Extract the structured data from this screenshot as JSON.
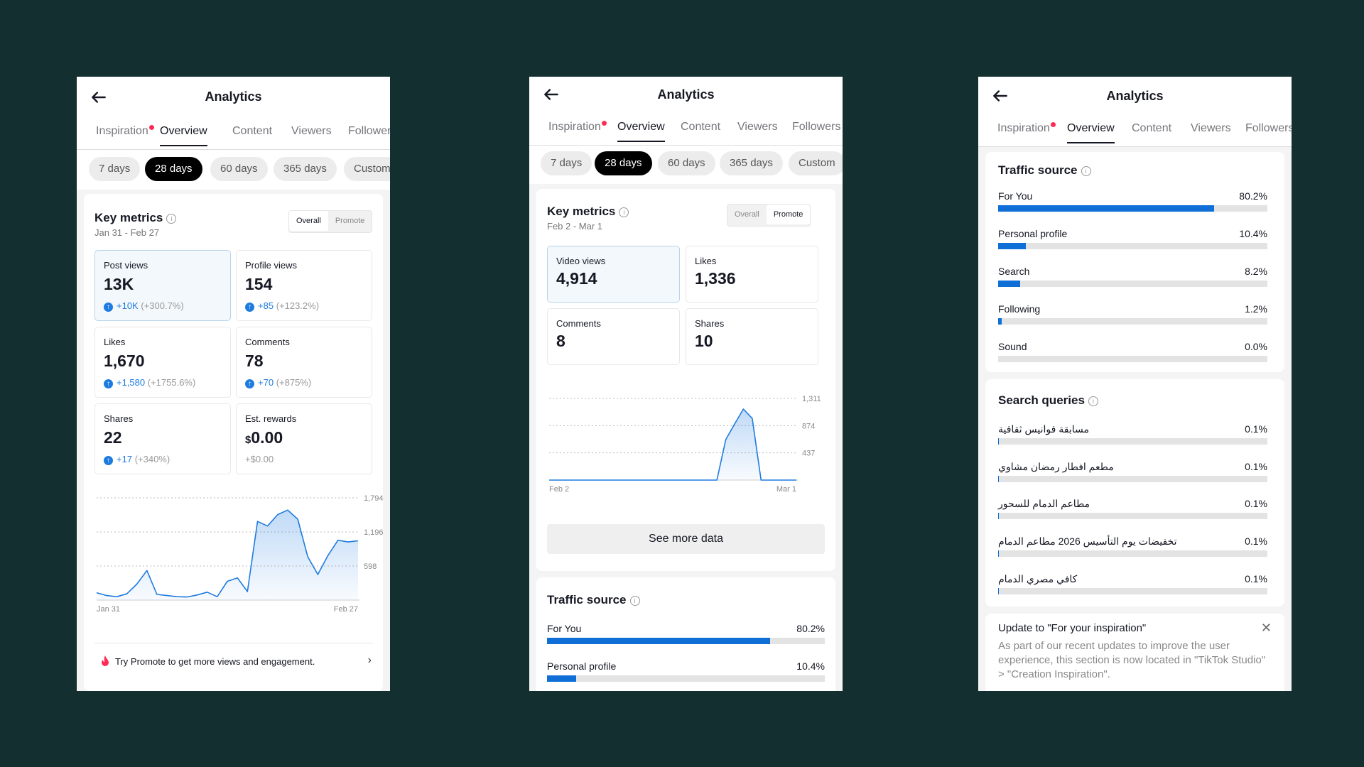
{
  "colors": {
    "background": "#132f30",
    "accent": "#1e7be0",
    "bar": "#0f6fd7",
    "notif_dot": "#fe2c55"
  },
  "header": {
    "title": "Analytics",
    "back_icon": "arrow-left-icon"
  },
  "tabs": [
    "Inspiration",
    "Overview",
    "Content",
    "Viewers",
    "Followers"
  ],
  "active_tab": "Overview",
  "date_ranges": [
    "7 days",
    "28 days",
    "60 days",
    "365 days",
    "Custom"
  ],
  "active_range": "28 days",
  "screen1": {
    "key_metrics_title": "Key metrics",
    "date_range": "Jan 31 - Feb 27",
    "toggle": [
      "Overall",
      "Promote"
    ],
    "toggle_active": "Overall",
    "metrics": [
      {
        "label": "Post views",
        "value": "13K",
        "change": "+10K",
        "pct": "(+300.7%)"
      },
      {
        "label": "Profile views",
        "value": "154",
        "change": "+85",
        "pct": "(+123.2%)"
      },
      {
        "label": "Likes",
        "value": "1,670",
        "change": "+1,580",
        "pct": "(+1755.6%)"
      },
      {
        "label": "Comments",
        "value": "78",
        "change": "+70",
        "pct": "(+875%)"
      },
      {
        "label": "Shares",
        "value": "22",
        "change": "+17",
        "pct": "(+340%)"
      },
      {
        "label": "Est. rewards",
        "currency": "$",
        "value": "0.00",
        "change_plain": "+$0.00"
      }
    ],
    "promo_text": "Try Promote to get more views and engagement."
  },
  "screen2": {
    "key_metrics_title": "Key metrics",
    "date_range": "Feb 2 - Mar 1",
    "toggle": [
      "Overall",
      "Promote"
    ],
    "toggle_active": "Promote",
    "metrics": [
      {
        "label": "Video views",
        "value": "4,914"
      },
      {
        "label": "Likes",
        "value": "1,336"
      },
      {
        "label": "Comments",
        "value": "8"
      },
      {
        "label": "Shares",
        "value": "10"
      }
    ],
    "see_more": "See more data",
    "traffic_title": "Traffic source",
    "traffic": [
      {
        "name": "For You",
        "pct": "80.2%",
        "value": 80.2
      },
      {
        "name": "Personal profile",
        "pct": "10.4%",
        "value": 10.4
      }
    ]
  },
  "screen3": {
    "traffic_title": "Traffic source",
    "traffic": [
      {
        "name": "For You",
        "pct": "80.2%",
        "value": 80.2
      },
      {
        "name": "Personal profile",
        "pct": "10.4%",
        "value": 10.4
      },
      {
        "name": "Search",
        "pct": "8.2%",
        "value": 8.2
      },
      {
        "name": "Following",
        "pct": "1.2%",
        "value": 1.2
      },
      {
        "name": "Sound",
        "pct": "0.0%",
        "value": 0
      }
    ],
    "search_title": "Search queries",
    "queries": [
      {
        "name": "مسابقة فوانيس ثقافية",
        "pct": "0.1%",
        "value": 0.1
      },
      {
        "name": "مطعم افطار رمضان مشاوي",
        "pct": "0.1%",
        "value": 0.1
      },
      {
        "name": "مطاعم الدمام للسحور",
        "pct": "0.1%",
        "value": 0.1
      },
      {
        "name": "تخفيضات يوم التأسيس 2026 مطاعم الدمام",
        "pct": "0.1%",
        "value": 0.1
      },
      {
        "name": "كافي مصري الدمام",
        "pct": "0.1%",
        "value": 0.1
      }
    ],
    "notice_title": "Update to \"For your inspiration\"",
    "notice_body": "As part of our recent updates to improve the user experience, this section is now located in \"TikTok Studio\" > \"Creation Inspiration\"."
  },
  "chart_data": [
    {
      "type": "area",
      "x_start": "Jan 31",
      "x_end": "Feb 27",
      "y_ticks": [
        "598",
        "1,196",
        "1,794"
      ],
      "ylim": [
        0,
        1794
      ],
      "values": [
        130,
        80,
        60,
        110,
        280,
        520,
        100,
        80,
        60,
        55,
        90,
        140,
        60,
        330,
        390,
        150,
        1380,
        1300,
        1500,
        1580,
        1420,
        760,
        450,
        780,
        1050,
        1020,
        1040
      ],
      "grid": true
    },
    {
      "type": "area",
      "x_start": "Feb 2",
      "x_end": "Mar 1",
      "y_ticks": [
        "437",
        "874",
        "1,311"
      ],
      "ylim": [
        0,
        1311
      ],
      "values": [
        0,
        0,
        0,
        0,
        0,
        0,
        0,
        0,
        0,
        0,
        0,
        0,
        0,
        0,
        0,
        0,
        0,
        0,
        0,
        0,
        650,
        900,
        1140,
        990,
        0,
        0,
        0,
        0,
        0
      ],
      "grid": true
    }
  ]
}
